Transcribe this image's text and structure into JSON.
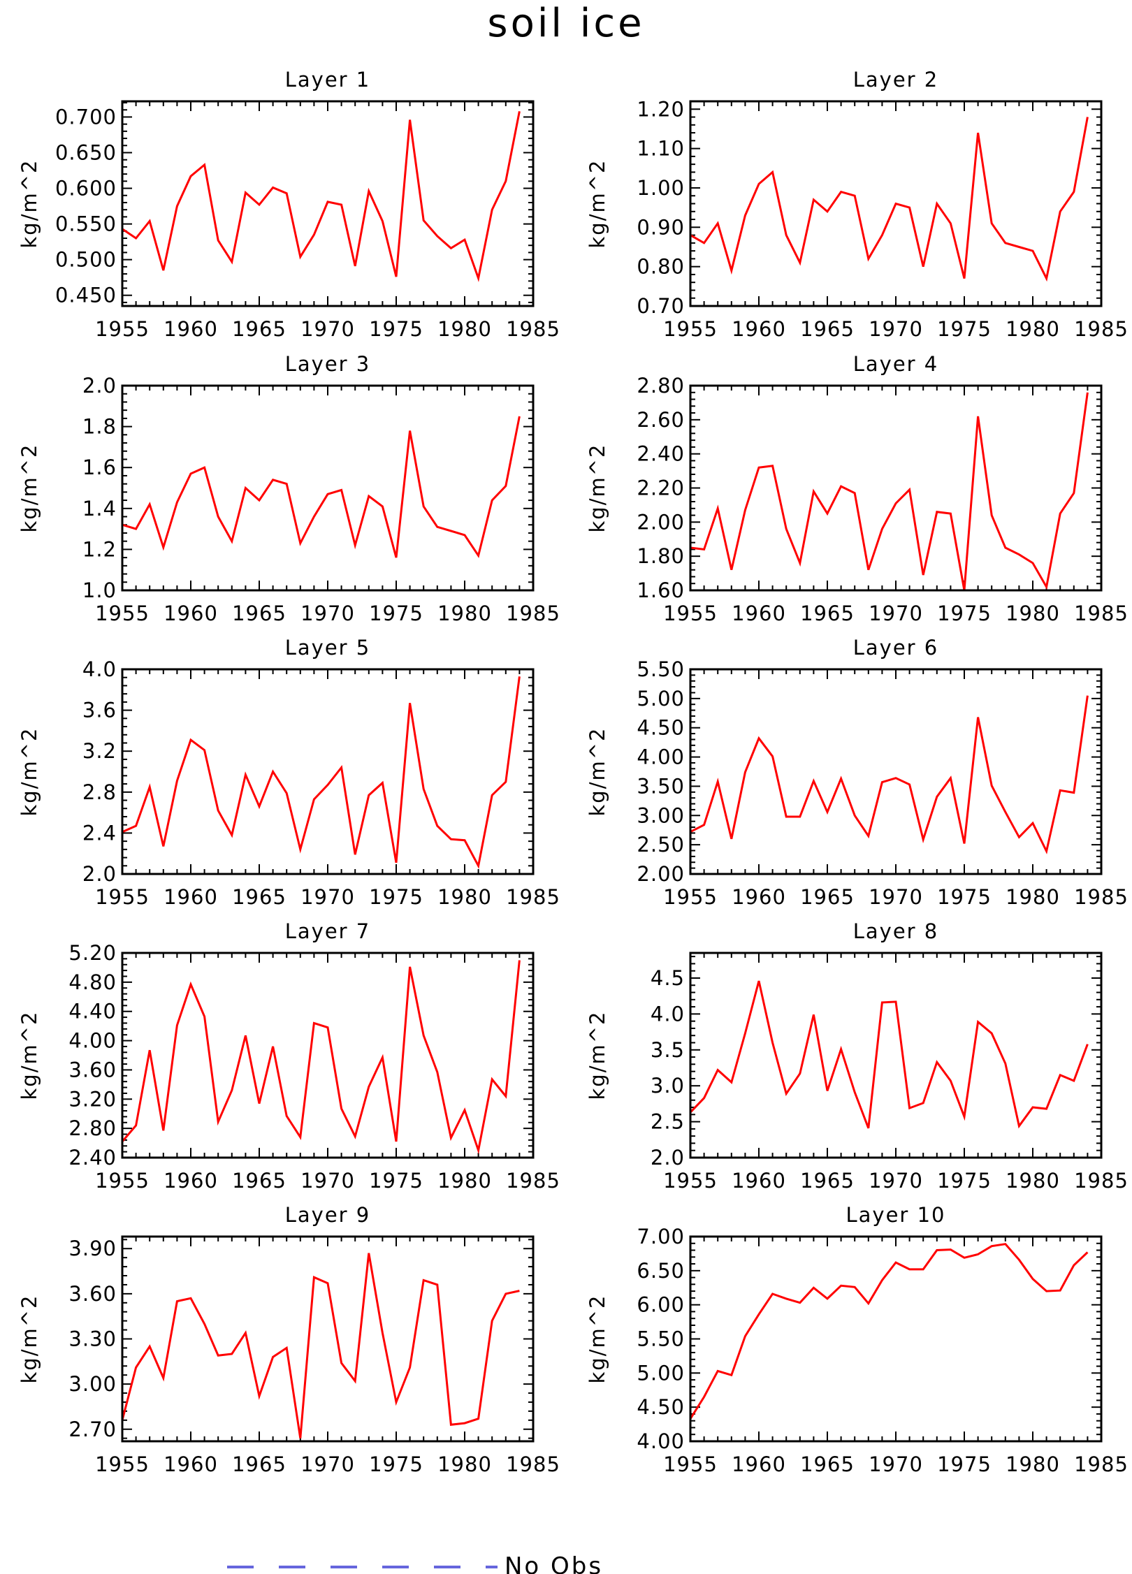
{
  "figure": {
    "title": "soil ice",
    "legend_label": "No Obs",
    "line_color": "#ff0000",
    "legend_color": "#6666dd"
  },
  "chart_data": [
    {
      "type": "line",
      "title": "Layer 1",
      "ylabel": "kg/m^2",
      "xlim": [
        1955,
        1985
      ],
      "ylim": [
        0.435,
        0.722
      ],
      "xticks": [
        1955,
        1960,
        1965,
        1970,
        1975,
        1980,
        1985
      ],
      "yticks": [
        "0.450",
        "0.500",
        "0.550",
        "0.600",
        "0.650",
        "0.700"
      ],
      "x": [
        1955,
        1956,
        1957,
        1958,
        1959,
        1960,
        1961,
        1962,
        1963,
        1964,
        1965,
        1966,
        1967,
        1968,
        1969,
        1970,
        1971,
        1972,
        1973,
        1974,
        1975,
        1976,
        1977,
        1978,
        1979,
        1980,
        1981,
        1982,
        1983,
        1984
      ],
      "series": [
        {
          "values": [
            0.543,
            0.53,
            0.554,
            0.485,
            0.575,
            0.617,
            0.633,
            0.527,
            0.497,
            0.594,
            0.577,
            0.601,
            0.593,
            0.504,
            0.535,
            0.581,
            0.577,
            0.491,
            0.596,
            0.554,
            0.476,
            0.696,
            0.555,
            0.533,
            0.516,
            0.528,
            0.474,
            0.57,
            0.61,
            0.708
          ]
        }
      ]
    },
    {
      "type": "line",
      "title": "Layer 2",
      "ylabel": "kg/m^2",
      "xlim": [
        1955,
        1985
      ],
      "ylim": [
        0.7,
        1.22
      ],
      "xticks": [
        1955,
        1960,
        1965,
        1970,
        1975,
        1980,
        1985
      ],
      "yticks": [
        "0.70",
        "0.80",
        "0.90",
        "1.00",
        "1.10",
        "1.20"
      ],
      "x": [
        1955,
        1956,
        1957,
        1958,
        1959,
        1960,
        1961,
        1962,
        1963,
        1964,
        1965,
        1966,
        1967,
        1968,
        1969,
        1970,
        1971,
        1972,
        1973,
        1974,
        1975,
        1976,
        1977,
        1978,
        1979,
        1980,
        1981,
        1982,
        1983,
        1984
      ],
      "series": [
        {
          "values": [
            0.88,
            0.86,
            0.91,
            0.79,
            0.93,
            1.01,
            1.04,
            0.88,
            0.81,
            0.97,
            0.94,
            0.99,
            0.98,
            0.82,
            0.88,
            0.96,
            0.95,
            0.8,
            0.96,
            0.91,
            0.77,
            1.14,
            0.91,
            0.86,
            0.85,
            0.84,
            0.77,
            0.94,
            0.99,
            1.18
          ]
        }
      ]
    },
    {
      "type": "line",
      "title": "Layer 3",
      "ylabel": "kg/m^2",
      "xlim": [
        1955,
        1985
      ],
      "ylim": [
        1.0,
        2.0
      ],
      "xticks": [
        1955,
        1960,
        1965,
        1970,
        1975,
        1980,
        1985
      ],
      "yticks": [
        "1.0",
        "1.2",
        "1.4",
        "1.6",
        "1.8",
        "2.0"
      ],
      "x": [
        1955,
        1956,
        1957,
        1958,
        1959,
        1960,
        1961,
        1962,
        1963,
        1964,
        1965,
        1966,
        1967,
        1968,
        1969,
        1970,
        1971,
        1972,
        1973,
        1974,
        1975,
        1976,
        1977,
        1978,
        1979,
        1980,
        1981,
        1982,
        1983,
        1984
      ],
      "series": [
        {
          "values": [
            1.32,
            1.3,
            1.42,
            1.21,
            1.43,
            1.57,
            1.6,
            1.36,
            1.24,
            1.5,
            1.44,
            1.54,
            1.52,
            1.23,
            1.36,
            1.47,
            1.49,
            1.22,
            1.46,
            1.41,
            1.16,
            1.78,
            1.41,
            1.31,
            1.29,
            1.27,
            1.17,
            1.44,
            1.51,
            1.85
          ]
        }
      ]
    },
    {
      "type": "line",
      "title": "Layer 4",
      "ylabel": "kg/m^2",
      "xlim": [
        1955,
        1985
      ],
      "ylim": [
        1.6,
        2.8
      ],
      "xticks": [
        1955,
        1960,
        1965,
        1970,
        1975,
        1980,
        1985
      ],
      "yticks": [
        "1.60",
        "1.80",
        "2.00",
        "2.20",
        "2.40",
        "2.60",
        "2.80"
      ],
      "x": [
        1955,
        1956,
        1957,
        1958,
        1959,
        1960,
        1961,
        1962,
        1963,
        1964,
        1965,
        1966,
        1967,
        1968,
        1969,
        1970,
        1971,
        1972,
        1973,
        1974,
        1975,
        1976,
        1977,
        1978,
        1979,
        1980,
        1981,
        1982,
        1983,
        1984
      ],
      "series": [
        {
          "values": [
            1.85,
            1.84,
            2.08,
            1.72,
            2.07,
            2.32,
            2.33,
            1.96,
            1.76,
            2.18,
            2.05,
            2.21,
            2.17,
            1.72,
            1.96,
            2.11,
            2.19,
            1.69,
            2.06,
            2.05,
            1.6,
            2.62,
            2.04,
            1.85,
            1.81,
            1.76,
            1.62,
            2.05,
            2.17,
            2.76
          ]
        }
      ]
    },
    {
      "type": "line",
      "title": "Layer 5",
      "ylabel": "kg/m^2",
      "xlim": [
        1955,
        1985
      ],
      "ylim": [
        2.0,
        4.0
      ],
      "xticks": [
        1955,
        1960,
        1965,
        1970,
        1975,
        1980,
        1985
      ],
      "yticks": [
        "2.0",
        "2.4",
        "2.8",
        "3.2",
        "3.6",
        "4.0"
      ],
      "x": [
        1955,
        1956,
        1957,
        1958,
        1959,
        1960,
        1961,
        1962,
        1963,
        1964,
        1965,
        1966,
        1967,
        1968,
        1969,
        1970,
        1971,
        1972,
        1973,
        1974,
        1975,
        1976,
        1977,
        1978,
        1979,
        1980,
        1981,
        1982,
        1983,
        1984
      ],
      "series": [
        {
          "values": [
            2.41,
            2.47,
            2.85,
            2.27,
            2.91,
            3.31,
            3.21,
            2.62,
            2.38,
            2.97,
            2.66,
            3.0,
            2.79,
            2.24,
            2.73,
            2.87,
            3.04,
            2.19,
            2.77,
            2.89,
            2.11,
            3.67,
            2.83,
            2.47,
            2.34,
            2.33,
            2.08,
            2.77,
            2.9,
            3.93
          ]
        }
      ]
    },
    {
      "type": "line",
      "title": "Layer 6",
      "ylabel": "kg/m^2",
      "xlim": [
        1955,
        1985
      ],
      "ylim": [
        2.0,
        5.5
      ],
      "xticks": [
        1955,
        1960,
        1965,
        1970,
        1975,
        1980,
        1985
      ],
      "yticks": [
        "2.00",
        "2.50",
        "3.00",
        "3.50",
        "4.00",
        "4.50",
        "5.00",
        "5.50"
      ],
      "x": [
        1955,
        1956,
        1957,
        1958,
        1959,
        1960,
        1961,
        1962,
        1963,
        1964,
        1965,
        1966,
        1967,
        1968,
        1969,
        1970,
        1971,
        1972,
        1973,
        1974,
        1975,
        1976,
        1977,
        1978,
        1979,
        1980,
        1981,
        1982,
        1983,
        1984
      ],
      "series": [
        {
          "values": [
            2.72,
            2.84,
            3.58,
            2.6,
            3.74,
            4.32,
            4.01,
            2.98,
            2.98,
            3.59,
            3.06,
            3.63,
            3.0,
            2.65,
            3.57,
            3.64,
            3.53,
            2.59,
            3.32,
            3.64,
            2.52,
            4.68,
            3.51,
            3.06,
            2.63,
            2.87,
            2.39,
            3.43,
            3.39,
            5.05
          ]
        }
      ]
    },
    {
      "type": "line",
      "title": "Layer 7",
      "ylabel": "kg/m^2",
      "xlim": [
        1955,
        1985
      ],
      "ylim": [
        2.4,
        5.2
      ],
      "xticks": [
        1955,
        1960,
        1965,
        1970,
        1975,
        1980,
        1985
      ],
      "yticks": [
        "2.40",
        "2.80",
        "3.20",
        "3.60",
        "4.00",
        "4.40",
        "4.80",
        "5.20"
      ],
      "x": [
        1955,
        1956,
        1957,
        1958,
        1959,
        1960,
        1961,
        1962,
        1963,
        1964,
        1965,
        1966,
        1967,
        1968,
        1969,
        1970,
        1971,
        1972,
        1973,
        1974,
        1975,
        1976,
        1977,
        1978,
        1979,
        1980,
        1981,
        1982,
        1983,
        1984
      ],
      "series": [
        {
          "values": [
            2.62,
            2.84,
            3.87,
            2.77,
            4.21,
            4.77,
            4.33,
            2.89,
            3.32,
            4.07,
            3.14,
            3.92,
            2.97,
            2.68,
            4.24,
            4.18,
            3.07,
            2.69,
            3.37,
            3.77,
            2.62,
            5.01,
            4.07,
            3.57,
            2.67,
            3.05,
            2.5,
            3.47,
            3.24,
            5.1
          ]
        }
      ]
    },
    {
      "type": "line",
      "title": "Layer 8",
      "ylabel": "kg/m^2",
      "xlim": [
        1955,
        1985
      ],
      "ylim": [
        2.0,
        4.85
      ],
      "xticks": [
        1955,
        1960,
        1965,
        1970,
        1975,
        1980,
        1985
      ],
      "yticks": [
        "2.0",
        "2.5",
        "3.0",
        "3.5",
        "4.0",
        "4.5"
      ],
      "x": [
        1955,
        1956,
        1957,
        1958,
        1959,
        1960,
        1961,
        1962,
        1963,
        1964,
        1965,
        1966,
        1967,
        1968,
        1969,
        1970,
        1971,
        1972,
        1973,
        1974,
        1975,
        1976,
        1977,
        1978,
        1979,
        1980,
        1981,
        1982,
        1983,
        1984
      ],
      "series": [
        {
          "values": [
            2.63,
            2.83,
            3.22,
            3.05,
            3.73,
            4.46,
            3.6,
            2.89,
            3.17,
            3.99,
            2.93,
            3.51,
            2.91,
            2.41,
            4.16,
            4.17,
            2.69,
            2.76,
            3.33,
            3.07,
            2.57,
            3.89,
            3.73,
            3.31,
            2.44,
            2.7,
            2.68,
            3.15,
            3.07,
            3.58
          ]
        }
      ]
    },
    {
      "type": "line",
      "title": "Layer 9",
      "ylabel": "kg/m^2",
      "xlim": [
        1955,
        1985
      ],
      "ylim": [
        2.62,
        3.98
      ],
      "xticks": [
        1955,
        1960,
        1965,
        1970,
        1975,
        1980,
        1985
      ],
      "yticks": [
        "2.70",
        "3.00",
        "3.30",
        "3.60",
        "3.90"
      ],
      "x": [
        1955,
        1956,
        1957,
        1958,
        1959,
        1960,
        1961,
        1962,
        1963,
        1964,
        1965,
        1966,
        1967,
        1968,
        1969,
        1970,
        1971,
        1972,
        1973,
        1974,
        1975,
        1976,
        1977,
        1978,
        1979,
        1980,
        1981,
        1982,
        1983,
        1984
      ],
      "series": [
        {
          "values": [
            2.76,
            3.11,
            3.25,
            3.04,
            3.55,
            3.57,
            3.4,
            3.19,
            3.2,
            3.34,
            2.92,
            3.18,
            3.24,
            2.64,
            3.71,
            3.67,
            3.14,
            3.02,
            3.87,
            3.34,
            2.88,
            3.11,
            3.69,
            3.66,
            2.73,
            2.74,
            2.77,
            3.42,
            3.6,
            3.62
          ]
        }
      ]
    },
    {
      "type": "line",
      "title": "Layer 10",
      "ylabel": "kg/m^2",
      "xlim": [
        1955,
        1985
      ],
      "ylim": [
        4.0,
        7.0
      ],
      "xticks": [
        1955,
        1960,
        1965,
        1970,
        1975,
        1980,
        1985
      ],
      "yticks": [
        "4.00",
        "4.50",
        "5.00",
        "5.50",
        "6.00",
        "6.50",
        "7.00"
      ],
      "x": [
        1955,
        1956,
        1957,
        1958,
        1959,
        1960,
        1961,
        1962,
        1963,
        1964,
        1965,
        1966,
        1967,
        1968,
        1969,
        1970,
        1971,
        1972,
        1973,
        1974,
        1975,
        1976,
        1977,
        1978,
        1979,
        1980,
        1981,
        1982,
        1983,
        1984
      ],
      "series": [
        {
          "values": [
            4.33,
            4.65,
            5.03,
            4.97,
            5.54,
            5.86,
            6.16,
            6.09,
            6.03,
            6.25,
            6.09,
            6.28,
            6.26,
            6.02,
            6.36,
            6.62,
            6.52,
            6.52,
            6.8,
            6.81,
            6.69,
            6.74,
            6.86,
            6.89,
            6.66,
            6.38,
            6.2,
            6.21,
            6.58,
            6.77
          ]
        }
      ]
    }
  ]
}
